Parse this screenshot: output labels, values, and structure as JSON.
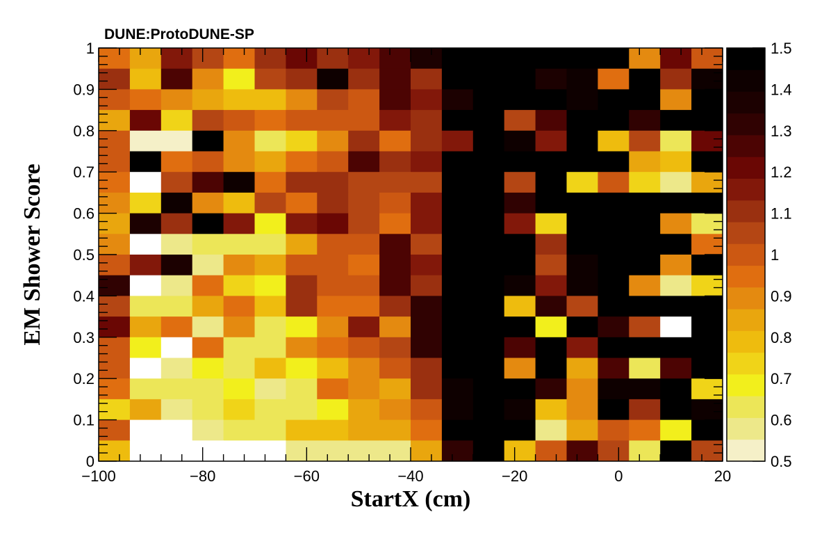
{
  "chart_data": {
    "type": "heatmap",
    "title": "DUNE:ProtoDUNE-SP",
    "xlabel": "StartX (cm)",
    "ylabel": "EM Shower Score",
    "xlim": [
      -100,
      20
    ],
    "ylim": [
      0,
      1
    ],
    "zlim": [
      0.5,
      1.5
    ],
    "x_edges": [
      -100,
      -94,
      -88,
      -82,
      -76,
      -70,
      -64,
      -58,
      -52,
      -46,
      -40,
      -34,
      -28,
      -22,
      -16,
      -10,
      -4,
      2,
      8,
      14,
      20
    ],
    "y_edges": [
      0,
      0.05,
      0.1,
      0.15,
      0.2,
      0.25,
      0.3,
      0.35,
      0.4,
      0.45,
      0.5,
      0.55,
      0.6,
      0.65,
      0.7,
      0.75,
      0.8,
      0.85,
      0.9,
      0.95,
      1.0
    ],
    "x_ticks": [
      -100,
      -80,
      -60,
      -40,
      -20,
      0,
      20
    ],
    "x_tick_labels": [
      "−100",
      "−80",
      "−60",
      "−40",
      "−20",
      "0",
      "20"
    ],
    "y_ticks": [
      0,
      0.1,
      0.2,
      0.3,
      0.4,
      0.5,
      0.6,
      0.7,
      0.8,
      0.9,
      1
    ],
    "y_tick_labels": [
      "0",
      "0.1",
      "0.2",
      "0.3",
      "0.4",
      "0.5",
      "0.6",
      "0.7",
      "0.8",
      "0.9",
      "1"
    ],
    "z_ticks": [
      0.5,
      0.6,
      0.7,
      0.8,
      0.9,
      1,
      1.1,
      1.2,
      1.3,
      1.4,
      1.5
    ],
    "z_tick_labels": [
      "0.5",
      "0.6",
      "0.7",
      "0.8",
      "0.9",
      "1",
      "1.1",
      "1.2",
      "1.3",
      "1.4",
      "1.5"
    ],
    "palette": [
      "#f5f0c8",
      "#ede88a",
      "#ece658",
      "#f2ef1c",
      "#f0d418",
      "#eebc0e",
      "#e9a60e",
      "#e48a10",
      "#e06e10",
      "#cc5812",
      "#b44614",
      "#9a3010",
      "#82180a",
      "#6a0704",
      "#4c0403",
      "#300202",
      "#1c0101",
      "#0e0000",
      "#000000"
    ],
    "empty_color": "#ffffff",
    "values_top_to_bottom": [
      [
        0.97,
        0.82,
        1.15,
        1.05,
        0.93,
        1.12,
        1.2,
        1.13,
        1.18,
        1.25,
        1.35,
        1.45,
        1.5,
        1.5,
        1.5,
        1.5,
        1.5,
        0.9,
        1.2,
        1.02
      ],
      [
        1.1,
        0.8,
        1.27,
        0.92,
        0.66,
        1.07,
        1.08,
        1.44,
        1.13,
        1.27,
        1.08,
        1.46,
        1.5,
        1.5,
        1.35,
        1.4,
        0.96,
        1.5,
        1.1,
        1.42
      ],
      [
        1.02,
        0.93,
        0.92,
        0.82,
        0.8,
        0.8,
        0.87,
        1.07,
        1.0,
        1.27,
        1.15,
        1.38,
        1.5,
        1.45,
        1.5,
        1.4,
        1.5,
        1.5,
        0.92,
        1.46
      ],
      [
        0.84,
        1.2,
        0.72,
        1.05,
        1.0,
        0.97,
        1.02,
        0.98,
        1.0,
        1.17,
        1.1,
        1.5,
        1.5,
        1.07,
        1.27,
        1.5,
        1.5,
        1.3,
        1.5,
        1.5
      ],
      [
        1.02,
        0.55,
        0.55,
        1.5,
        0.87,
        0.65,
        0.75,
        0.92,
        1.13,
        0.97,
        1.08,
        1.17,
        1.5,
        1.42,
        1.15,
        1.5,
        0.77,
        1.05,
        0.65,
        1.23
      ],
      [
        1.02,
        1.5,
        0.93,
        0.98,
        0.87,
        0.85,
        0.95,
        1.02,
        1.27,
        1.1,
        1.18,
        1.5,
        1.5,
        1.5,
        1.5,
        1.5,
        1.5,
        0.83,
        0.78,
        1.5
      ],
      [
        0.97,
        null,
        1.05,
        1.28,
        1.4,
        0.95,
        1.08,
        1.08,
        1.05,
        1.05,
        1.05,
        1.5,
        1.5,
        1.07,
        1.5,
        0.75,
        1.02,
        0.75,
        0.57,
        0.85
      ],
      [
        0.87,
        0.72,
        1.43,
        0.88,
        0.78,
        1.07,
        0.93,
        1.12,
        1.05,
        1.0,
        1.15,
        1.48,
        1.5,
        1.3,
        1.45,
        1.45,
        1.5,
        1.5,
        1.5,
        1.5
      ],
      [
        0.85,
        1.38,
        1.1,
        1.5,
        1.15,
        0.66,
        1.15,
        1.22,
        1.05,
        0.95,
        1.15,
        1.48,
        1.5,
        1.15,
        0.73,
        1.5,
        1.5,
        1.5,
        0.87,
        0.62
      ],
      [
        0.87,
        null,
        0.6,
        0.62,
        0.62,
        0.62,
        0.83,
        1.0,
        1.0,
        1.27,
        1.07,
        1.5,
        1.5,
        1.5,
        1.13,
        1.5,
        1.5,
        1.5,
        1.5,
        0.97
      ],
      [
        1.02,
        1.17,
        1.38,
        0.57,
        0.88,
        0.85,
        1.0,
        1.0,
        0.95,
        1.27,
        1.18,
        1.45,
        1.5,
        1.5,
        1.05,
        1.42,
        1.5,
        1.5,
        0.88,
        1.5
      ],
      [
        1.3,
        null,
        0.6,
        0.93,
        0.75,
        0.68,
        1.08,
        1.0,
        1.0,
        1.27,
        1.12,
        1.5,
        1.5,
        1.43,
        1.17,
        1.42,
        1.5,
        0.88,
        0.6,
        0.75
      ],
      [
        1.07,
        0.65,
        0.62,
        0.85,
        0.93,
        0.77,
        1.08,
        0.95,
        0.95,
        1.1,
        1.3,
        1.46,
        1.5,
        0.77,
        1.33,
        1.05,
        1.5,
        1.5,
        1.5,
        1.5
      ],
      [
        1.23,
        0.85,
        0.93,
        0.6,
        0.88,
        0.65,
        0.7,
        0.88,
        1.15,
        0.92,
        1.32,
        1.5,
        1.5,
        1.5,
        0.7,
        1.5,
        1.3,
        1.05,
        null,
        1.5
      ],
      [
        1.02,
        0.7,
        null,
        0.93,
        0.63,
        0.65,
        0.88,
        0.93,
        1.0,
        1.05,
        1.32,
        1.5,
        1.5,
        1.25,
        1.5,
        1.15,
        1.5,
        1.5,
        1.5,
        1.5
      ],
      [
        1.02,
        null,
        0.56,
        0.7,
        0.65,
        0.78,
        0.68,
        0.78,
        0.88,
        1.0,
        1.1,
        1.5,
        1.5,
        0.87,
        1.5,
        0.85,
        1.28,
        0.63,
        1.27,
        1.5
      ],
      [
        0.97,
        0.62,
        0.65,
        0.65,
        0.7,
        0.58,
        0.63,
        0.93,
        0.88,
        0.82,
        1.12,
        1.42,
        1.5,
        1.5,
        1.3,
        0.87,
        1.4,
        1.43,
        1.5,
        0.73
      ],
      [
        0.75,
        0.83,
        0.6,
        0.65,
        0.72,
        0.65,
        0.65,
        0.7,
        0.85,
        0.88,
        1.02,
        1.42,
        1.5,
        1.42,
        0.77,
        0.88,
        1.5,
        1.12,
        1.5,
        1.43
      ],
      [
        1.02,
        null,
        null,
        0.6,
        0.62,
        0.62,
        0.8,
        0.8,
        0.83,
        0.83,
        0.97,
        1.5,
        1.5,
        1.5,
        0.6,
        0.83,
        0.98,
        0.93,
        0.7,
        1.5
      ],
      [
        0.78,
        null,
        null,
        null,
        null,
        null,
        0.58,
        0.58,
        0.58,
        0.6,
        0.85,
        1.32,
        1.5,
        0.78,
        0.98,
        1.27,
        1.05,
        0.63,
        1.5,
        1.05
      ]
    ]
  }
}
